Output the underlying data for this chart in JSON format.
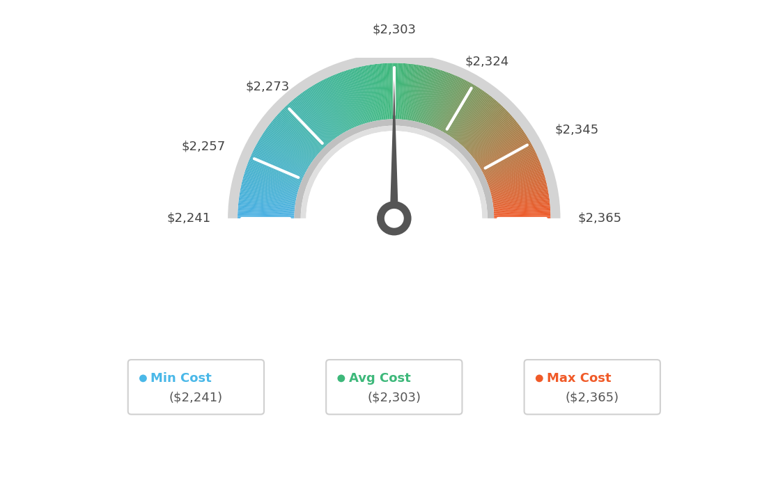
{
  "min_val": 2241,
  "max_val": 2365,
  "avg_val": 2303,
  "tick_labels": [
    "$2,241",
    "$2,257",
    "$2,273",
    "$2,303",
    "$2,324",
    "$2,345",
    "$2,365"
  ],
  "tick_values": [
    2241,
    2257,
    2273,
    2303,
    2324,
    2345,
    2365
  ],
  "legend_min_color": "#4ab8e8",
  "legend_avg_color": "#3db87a",
  "legend_max_color": "#f05a28",
  "background_color": "#ffffff",
  "color_blue": [
    0.29,
    0.69,
    0.89
  ],
  "color_green": [
    0.24,
    0.72,
    0.48
  ],
  "color_orange": [
    0.94,
    0.35,
    0.16
  ],
  "outer_gray": "#d4d4d4",
  "inner_gray_dark": "#c8c8c8",
  "inner_gray_light": "#e8e8e8",
  "needle_color": "#555555",
  "text_color": "#444444",
  "n_segments": 300
}
